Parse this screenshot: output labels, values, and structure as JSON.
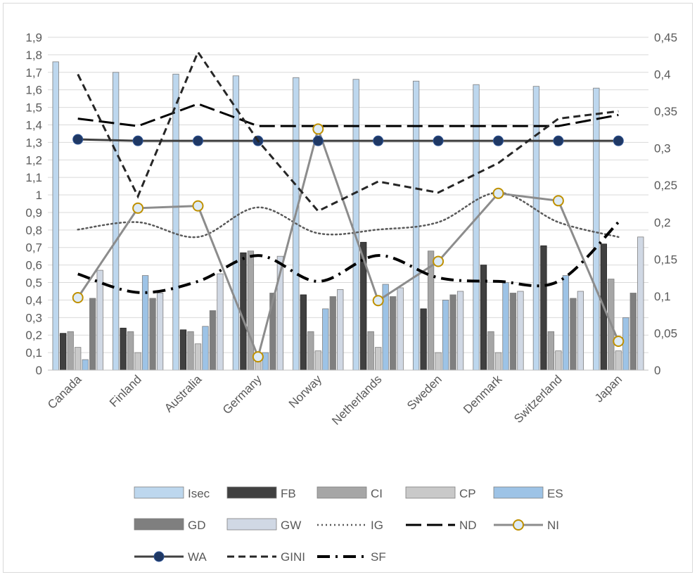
{
  "chart_data": {
    "type": "bar",
    "categories": [
      "Canada",
      "Finland",
      "Australia",
      "Germany",
      "Norway",
      "Netherlands",
      "Sweden",
      "Denmark",
      "Switzerland",
      "Japan"
    ],
    "y_left": {
      "range": [
        0,
        1.9
      ],
      "ticks": [
        "0",
        "0,1",
        "0,2",
        "0,3",
        "0,4",
        "0,5",
        "0,6",
        "0,7",
        "0,8",
        "0,9",
        "1",
        "1,1",
        "1,2",
        "1,3",
        "1,4",
        "1,5",
        "1,6",
        "1,7",
        "1,8",
        "1,9"
      ]
    },
    "y_right": {
      "range": [
        0,
        0.45
      ],
      "ticks": [
        "0",
        "0,05",
        "0,1",
        "0,15",
        "0,2",
        "0,25",
        "0,3",
        "0,35",
        "0,4",
        "0,45"
      ]
    },
    "grid": true,
    "legend_position": "bottom",
    "bar_series": [
      {
        "name": "Isec",
        "values": [
          1.76,
          1.7,
          1.69,
          1.68,
          1.67,
          1.66,
          1.65,
          1.63,
          1.62,
          1.61
        ],
        "color": "#bdd7ee"
      },
      {
        "name": "FB",
        "values": [
          0.21,
          0.24,
          0.23,
          0.67,
          0.43,
          0.73,
          0.35,
          0.6,
          0.71,
          0.72
        ],
        "color": "#404040"
      },
      {
        "name": "CI",
        "values": [
          0.22,
          0.22,
          0.22,
          0.68,
          0.22,
          0.22,
          0.68,
          0.22,
          0.22,
          0.52
        ],
        "color": "#a6a6a6"
      },
      {
        "name": "CP",
        "values": [
          0.13,
          0.1,
          0.15,
          0.1,
          0.11,
          0.13,
          0.1,
          0.1,
          0.11,
          0.11
        ],
        "color": "#c9c9c9"
      },
      {
        "name": "ES",
        "values": [
          0.06,
          0.54,
          0.25,
          0.1,
          0.35,
          0.49,
          0.4,
          0.5,
          0.54,
          0.3
        ],
        "color": "#9dc3e6"
      },
      {
        "name": "GD",
        "values": [
          0.41,
          0.41,
          0.34,
          0.44,
          0.42,
          0.42,
          0.43,
          0.44,
          0.41,
          0.44
        ],
        "color": "#7f7f7f"
      },
      {
        "name": "GW",
        "values": [
          0.57,
          0.44,
          0.55,
          0.65,
          0.46,
          0.47,
          0.45,
          0.45,
          0.45,
          0.76
        ],
        "color": "#d0d8e4"
      }
    ],
    "line_series": [
      {
        "name": "IG",
        "axis": "right",
        "values": [
          0.19,
          0.2,
          0.18,
          0.22,
          0.185,
          0.19,
          0.2,
          0.24,
          0.2,
          0.18
        ],
        "color": "#595959",
        "style": "dotted",
        "markers": false
      },
      {
        "name": "ND",
        "axis": "right",
        "values": [
          0.34,
          0.33,
          0.36,
          0.33,
          0.33,
          0.33,
          0.33,
          0.33,
          0.33,
          0.345
        ],
        "color": "#000000",
        "style": "longdash",
        "markers": false
      },
      {
        "name": "NI",
        "axis": "right",
        "values": [
          0.098,
          0.219,
          0.222,
          0.018,
          0.326,
          0.094,
          0.147,
          0.239,
          0.229,
          0.039
        ],
        "color": "#8c8c8c",
        "style": "solid",
        "markers": true
      },
      {
        "name": "WA",
        "axis": "right",
        "values": [
          0.312,
          0.31,
          0.31,
          0.31,
          0.31,
          0.31,
          0.31,
          0.31,
          0.31,
          0.31
        ],
        "color": "#404040",
        "style": "solid",
        "markers": true
      },
      {
        "name": "GINI",
        "axis": "right",
        "values": [
          0.4,
          0.235,
          0.43,
          0.31,
          0.215,
          0.255,
          0.24,
          0.28,
          0.34,
          0.35
        ],
        "color": "#262626",
        "style": "dash",
        "markers": false
      },
      {
        "name": "SF",
        "axis": "right",
        "values": [
          0.13,
          0.105,
          0.12,
          0.155,
          0.12,
          0.155,
          0.125,
          0.12,
          0.12,
          0.2
        ],
        "color": "#000000",
        "style": "dashdot",
        "markers": false
      }
    ],
    "title": "",
    "xlabel": "",
    "ylabel": ""
  }
}
